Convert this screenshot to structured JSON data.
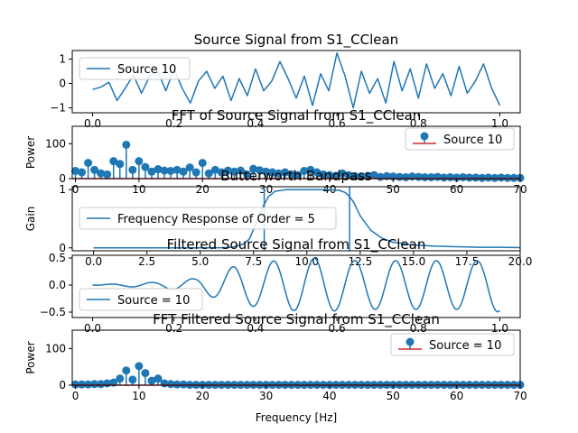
{
  "chart_data": [
    {
      "type": "line",
      "title": "Source Signal from S1_CClean",
      "xlabel": "",
      "ylabel": "",
      "xlim": [
        -0.05,
        1.05
      ],
      "ylim": [
        -1.2,
        1.35
      ],
      "xticks": [
        0.0,
        0.2,
        0.4,
        0.6,
        0.8,
        1.0
      ],
      "xtick_labels": [
        "0.0",
        "0.2",
        "0.4",
        "0.6",
        "0.8",
        "1.0"
      ],
      "yticks": [
        -1,
        0,
        1
      ],
      "ytick_labels": [
        "−1",
        "0",
        "1"
      ],
      "legend": {
        "placement": "upper-left",
        "entries": [
          "Source 10"
        ]
      },
      "color": "#1f77b4",
      "series": [
        {
          "name": "Source 10",
          "x": [
            0.0,
            0.02,
            0.04,
            0.06,
            0.08,
            0.1,
            0.12,
            0.14,
            0.16,
            0.18,
            0.2,
            0.22,
            0.24,
            0.26,
            0.28,
            0.3,
            0.32,
            0.34,
            0.36,
            0.38,
            0.4,
            0.42,
            0.44,
            0.46,
            0.48,
            0.5,
            0.52,
            0.54,
            0.56,
            0.58,
            0.6,
            0.62,
            0.64,
            0.66,
            0.68,
            0.7,
            0.72,
            0.74,
            0.76,
            0.78,
            0.8,
            0.82,
            0.84,
            0.86,
            0.88,
            0.9,
            0.92,
            0.94,
            0.96,
            0.98,
            1.0
          ],
          "values": [
            -0.25,
            -0.15,
            0.05,
            -0.7,
            -0.2,
            0.35,
            -0.4,
            0.3,
            0.5,
            -0.3,
            0.6,
            -0.2,
            -0.8,
            0.1,
            0.5,
            -0.2,
            0.3,
            -0.7,
            0.2,
            -0.5,
            0.6,
            -0.3,
            0.1,
            0.9,
            0.2,
            -0.6,
            0.3,
            -0.9,
            0.4,
            -0.3,
            1.25,
            0.3,
            -1.0,
            0.5,
            -0.4,
            0.2,
            -0.8,
            0.9,
            -0.3,
            0.6,
            -0.6,
            0.8,
            -0.2,
            0.4,
            -0.5,
            0.7,
            -0.4,
            0.1,
            0.8,
            -0.2,
            -0.9
          ]
        }
      ]
    },
    {
      "type": "stem",
      "title": "FFT of Source Signal from S1_CClean",
      "xlabel": "",
      "ylabel": "Power",
      "xlim": [
        -0.5,
        70
      ],
      "ylim": [
        0,
        150
      ],
      "xticks": [
        0,
        10,
        20,
        30,
        40,
        50,
        60,
        70
      ],
      "xtick_labels": [
        "0",
        "10",
        "20",
        "30",
        "40",
        "50",
        "60",
        "70"
      ],
      "yticks": [
        0,
        100
      ],
      "ytick_labels": [
        "0",
        "100"
      ],
      "legend": {
        "placement": "upper-right",
        "entries": [
          "Source 10"
        ]
      },
      "color": "#1f77b4",
      "baseline_color": "#d62728",
      "series": [
        {
          "name": "Source 10",
          "x": [
            0,
            1,
            2,
            3,
            4,
            5,
            6,
            7,
            8,
            9,
            10,
            11,
            12,
            13,
            14,
            15,
            16,
            17,
            18,
            19,
            20,
            21,
            22,
            23,
            24,
            25,
            26,
            27,
            28,
            29,
            30,
            31,
            32,
            33,
            34,
            35,
            36,
            37,
            38,
            39,
            40,
            41,
            42,
            43,
            44,
            45,
            46,
            47,
            48,
            49,
            50,
            51,
            52,
            53,
            54,
            55,
            56,
            57,
            58,
            59,
            60,
            61,
            62,
            63,
            64,
            65,
            66,
            67,
            68,
            69,
            70
          ],
          "values": [
            22,
            18,
            45,
            25,
            15,
            12,
            50,
            42,
            97,
            25,
            50,
            33,
            20,
            27,
            23,
            22,
            25,
            20,
            32,
            18,
            45,
            15,
            25,
            18,
            23,
            20,
            23,
            12,
            28,
            24,
            20,
            18,
            15,
            18,
            12,
            10,
            22,
            25,
            18,
            12,
            10,
            8,
            15,
            10,
            7,
            6,
            8,
            10,
            5,
            7,
            6,
            5,
            4,
            6,
            5,
            4,
            4,
            5,
            3,
            4,
            3,
            4,
            3,
            3,
            2,
            3,
            2,
            3,
            2,
            2,
            2
          ]
        }
      ]
    },
    {
      "type": "line",
      "title": "Butterworth Bandpass",
      "xlabel": "",
      "ylabel": "Gain",
      "xlim": [
        -1,
        20
      ],
      "ylim": [
        -0.05,
        1.05
      ],
      "xticks": [
        0.0,
        2.5,
        5.0,
        7.5,
        10.0,
        12.5,
        15.0,
        17.5,
        20.0
      ],
      "xtick_labels": [
        "0.0",
        "2.5",
        "5.0",
        "7.5",
        "10.0",
        "12.5",
        "15.0",
        "17.5",
        "20.0"
      ],
      "yticks": [
        0,
        1
      ],
      "ytick_labels": [
        "0",
        "1"
      ],
      "legend": {
        "placement": "center-left",
        "entries": [
          "Frequency Response of Order = 5"
        ]
      },
      "color": "#1f77b4",
      "vlines": [
        8.0,
        12.0
      ],
      "series": [
        {
          "name": "Frequency Response of Order = 5",
          "x": [
            0,
            1,
            2,
            3,
            4,
            5,
            6,
            6.5,
            7,
            7.3,
            7.6,
            7.8,
            8.0,
            8.2,
            8.5,
            9.0,
            10.0,
            11.0,
            11.5,
            11.8,
            12.0,
            12.2,
            12.5,
            13.0,
            13.5,
            14.0,
            15.0,
            16.0,
            17.0,
            18.0,
            19.0,
            20.0
          ],
          "values": [
            0,
            0,
            0,
            0,
            0,
            0,
            0.003,
            0.01,
            0.06,
            0.15,
            0.4,
            0.6,
            0.75,
            0.88,
            0.97,
            1.0,
            1.0,
            1.0,
            0.99,
            0.95,
            0.88,
            0.78,
            0.55,
            0.3,
            0.17,
            0.1,
            0.05,
            0.03,
            0.02,
            0.01,
            0.01,
            0.005
          ]
        }
      ]
    },
    {
      "type": "line",
      "title": "Filtered Source Signal from S1_CClean",
      "xlabel": "",
      "ylabel": "",
      "xlim": [
        -0.05,
        1.05
      ],
      "ylim": [
        -0.6,
        0.55
      ],
      "xticks": [
        0.0,
        0.2,
        0.4,
        0.6,
        0.8,
        1.0
      ],
      "xtick_labels": [
        "0.0",
        "0.2",
        "0.4",
        "0.6",
        "0.8",
        "1.0"
      ],
      "yticks": [
        -0.5,
        0.0,
        0.5
      ],
      "ytick_labels": [
        "−0.5",
        "0.0",
        "0.5"
      ],
      "legend": {
        "placement": "lower-left",
        "entries": [
          "Source = 10"
        ]
      },
      "color": "#1f77b4",
      "series": [
        {
          "name": "Source = 10",
          "amplitude_envelope": [
            [
              0.0,
              0.0
            ],
            [
              0.05,
              0.02
            ],
            [
              0.15,
              0.05
            ],
            [
              0.25,
              0.12
            ],
            [
              0.35,
              0.35
            ],
            [
              0.45,
              0.45
            ],
            [
              0.55,
              0.5
            ],
            [
              0.65,
              0.45
            ],
            [
              0.75,
              0.45
            ],
            [
              0.85,
              0.45
            ],
            [
              0.95,
              0.45
            ],
            [
              1.0,
              0.5
            ]
          ],
          "frequency_hz": 10
        }
      ]
    },
    {
      "type": "stem",
      "title": "FFT Filtered Source Signal from S1_CClean",
      "xlabel": "Frequency [Hz]",
      "ylabel": "Power",
      "xlim": [
        -0.5,
        70
      ],
      "ylim": [
        0,
        150
      ],
      "xticks": [
        0,
        10,
        20,
        30,
        40,
        50,
        60,
        70
      ],
      "xtick_labels": [
        "0",
        "10",
        "20",
        "30",
        "40",
        "50",
        "60",
        "70"
      ],
      "yticks": [
        0,
        100
      ],
      "ytick_labels": [
        "0",
        "100"
      ],
      "legend": {
        "placement": "upper-right",
        "entries": [
          "Source = 10"
        ]
      },
      "color": "#1f77b4",
      "baseline_color": "#d62728",
      "series": [
        {
          "name": "Source = 10",
          "x": [
            0,
            1,
            2,
            3,
            4,
            5,
            6,
            7,
            8,
            9,
            10,
            11,
            12,
            13,
            14,
            15,
            16,
            17,
            18,
            19,
            20,
            21,
            22,
            23,
            24,
            25,
            26,
            27,
            28,
            29,
            30,
            31,
            32,
            33,
            34,
            35,
            36,
            37,
            38,
            39,
            40,
            41,
            42,
            43,
            44,
            45,
            46,
            47,
            48,
            49,
            50,
            51,
            52,
            53,
            54,
            55,
            56,
            57,
            58,
            59,
            60,
            61,
            62,
            63,
            64,
            65,
            66,
            67,
            68,
            69,
            70
          ],
          "values": [
            2,
            2,
            2,
            3,
            3,
            5,
            7,
            18,
            40,
            15,
            52,
            33,
            12,
            18,
            5,
            3,
            2,
            2,
            1,
            1,
            1,
            1,
            1,
            1,
            1,
            1,
            1,
            1,
            1,
            1,
            1,
            1,
            1,
            1,
            1,
            1,
            1,
            1,
            1,
            1,
            1,
            1,
            1,
            1,
            1,
            1,
            1,
            1,
            1,
            1,
            1,
            1,
            1,
            1,
            1,
            1,
            1,
            1,
            1,
            1,
            1,
            1,
            1,
            1,
            1,
            1,
            1,
            1,
            1,
            1,
            1
          ]
        }
      ]
    }
  ]
}
